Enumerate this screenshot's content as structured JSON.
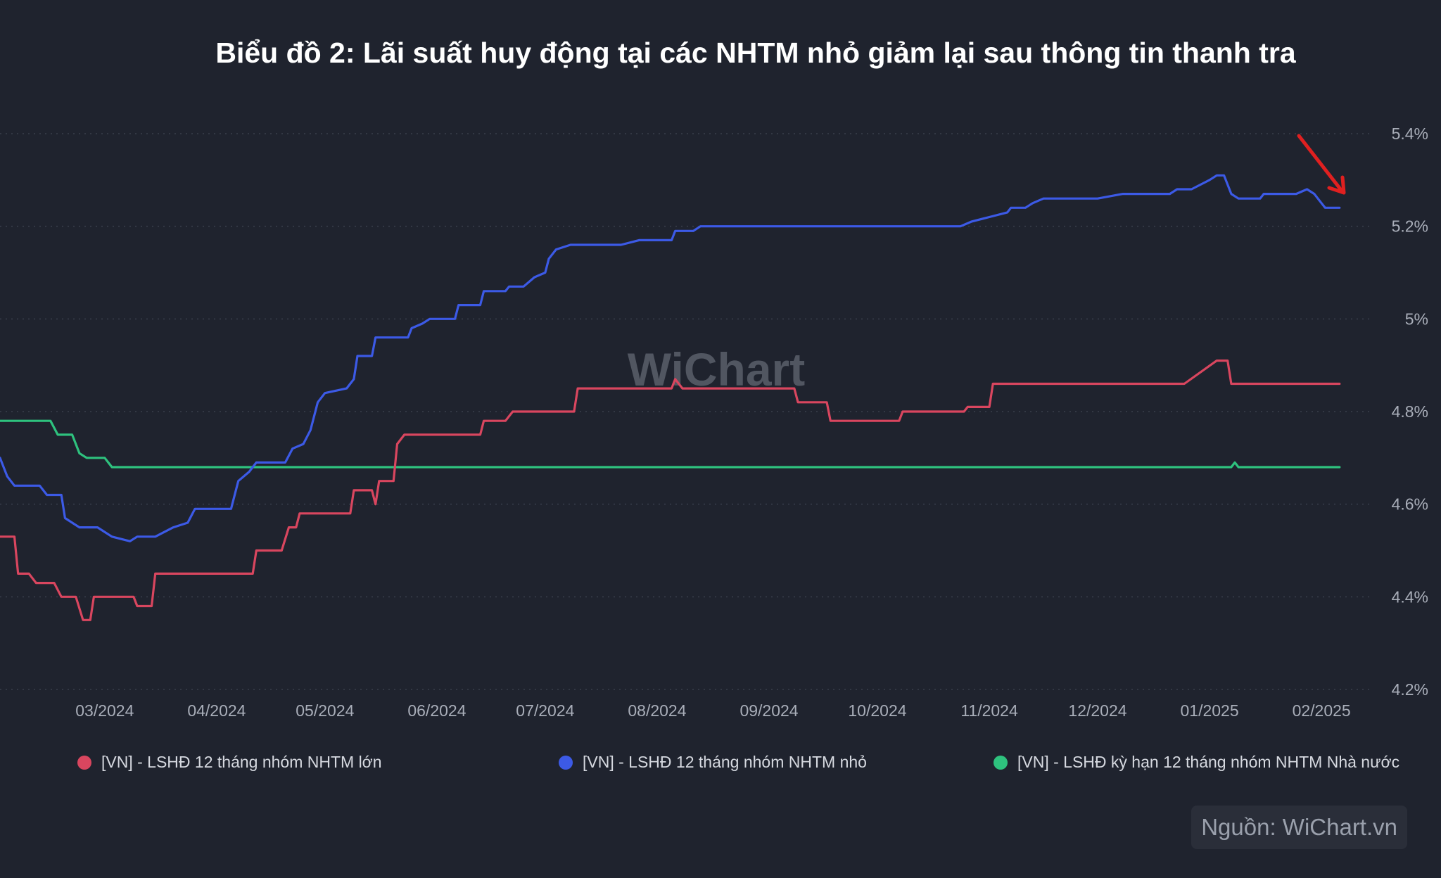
{
  "chart_data": {
    "type": "line",
    "title": "Biểu đồ 2: Lãi suất huy động tại các NHTM nhỏ giảm lại sau thông tin thanh tra",
    "xlabel": "",
    "ylabel": "",
    "x_ticks": [
      "03/2024",
      "04/2024",
      "05/2024",
      "06/2024",
      "07/2024",
      "08/2024",
      "09/2024",
      "10/2024",
      "11/2024",
      "12/2024",
      "01/2025",
      "02/2025"
    ],
    "x_ticks_dates": [
      "2024-03-01",
      "2024-04-01",
      "2024-05-01",
      "2024-06-01",
      "2024-07-01",
      "2024-08-01",
      "2024-09-01",
      "2024-10-01",
      "2024-11-01",
      "2024-12-01",
      "2025-01-01",
      "2025-02-01"
    ],
    "y_ticks": [
      4.2,
      4.4,
      4.6,
      4.8,
      5.0,
      5.2,
      5.4
    ],
    "y_tick_labels": [
      "4.2%",
      "4.4%",
      "4.6%",
      "4.8%",
      "5%",
      "5.2%",
      "5.4%"
    ],
    "ylim": [
      4.2,
      5.4
    ],
    "xlim": [
      "2024-02-01",
      "2025-02-15"
    ],
    "grid": true,
    "legend_position": "bottom",
    "watermark": "WiChart",
    "series": [
      {
        "name": "[VN] - LSHĐ 12 tháng nhóm NHTM lớn",
        "color": "#d9465f",
        "points": [
          [
            "2024-02-01",
            4.53
          ],
          [
            "2024-02-05",
            4.53
          ],
          [
            "2024-02-06",
            4.45
          ],
          [
            "2024-02-09",
            4.45
          ],
          [
            "2024-02-11",
            4.43
          ],
          [
            "2024-02-16",
            4.43
          ],
          [
            "2024-02-18",
            4.4
          ],
          [
            "2024-02-22",
            4.4
          ],
          [
            "2024-02-24",
            4.35
          ],
          [
            "2024-02-26",
            4.35
          ],
          [
            "2024-02-27",
            4.4
          ],
          [
            "2024-03-09",
            4.4
          ],
          [
            "2024-03-10",
            4.38
          ],
          [
            "2024-03-14",
            4.38
          ],
          [
            "2024-03-15",
            4.45
          ],
          [
            "2024-04-11",
            4.45
          ],
          [
            "2024-04-12",
            4.5
          ],
          [
            "2024-04-19",
            4.5
          ],
          [
            "2024-04-21",
            4.55
          ],
          [
            "2024-04-23",
            4.55
          ],
          [
            "2024-04-24",
            4.58
          ],
          [
            "2024-05-08",
            4.58
          ],
          [
            "2024-05-09",
            4.63
          ],
          [
            "2024-05-14",
            4.63
          ],
          [
            "2024-05-15",
            4.6
          ],
          [
            "2024-05-16",
            4.65
          ],
          [
            "2024-05-20",
            4.65
          ],
          [
            "2024-05-21",
            4.73
          ],
          [
            "2024-05-23",
            4.75
          ],
          [
            "2024-06-13",
            4.75
          ],
          [
            "2024-06-14",
            4.78
          ],
          [
            "2024-06-20",
            4.78
          ],
          [
            "2024-06-22",
            4.8
          ],
          [
            "2024-07-09",
            4.8
          ],
          [
            "2024-07-10",
            4.85
          ],
          [
            "2024-08-05",
            4.85
          ],
          [
            "2024-08-06",
            4.87
          ],
          [
            "2024-08-08",
            4.85
          ],
          [
            "2024-09-08",
            4.85
          ],
          [
            "2024-09-09",
            4.82
          ],
          [
            "2024-09-17",
            4.82
          ],
          [
            "2024-09-18",
            4.78
          ],
          [
            "2024-10-07",
            4.78
          ],
          [
            "2024-10-08",
            4.8
          ],
          [
            "2024-10-25",
            4.8
          ],
          [
            "2024-10-26",
            4.81
          ],
          [
            "2024-11-01",
            4.81
          ],
          [
            "2024-11-02",
            4.86
          ],
          [
            "2024-12-25",
            4.86
          ],
          [
            "2025-01-03",
            4.91
          ],
          [
            "2025-01-06",
            4.91
          ],
          [
            "2025-01-07",
            4.86
          ],
          [
            "2025-02-06",
            4.86
          ]
        ]
      },
      {
        "name": "[VN] - LSHĐ 12 tháng nhóm NHTM nhỏ",
        "color": "#3c5ae6",
        "points": [
          [
            "2024-02-01",
            4.7
          ],
          [
            "2024-02-03",
            4.66
          ],
          [
            "2024-02-05",
            4.64
          ],
          [
            "2024-02-12",
            4.64
          ],
          [
            "2024-02-14",
            4.62
          ],
          [
            "2024-02-18",
            4.62
          ],
          [
            "2024-02-19",
            4.57
          ],
          [
            "2024-02-21",
            4.56
          ],
          [
            "2024-02-23",
            4.55
          ],
          [
            "2024-02-28",
            4.55
          ],
          [
            "2024-03-03",
            4.53
          ],
          [
            "2024-03-08",
            4.52
          ],
          [
            "2024-03-10",
            4.53
          ],
          [
            "2024-03-15",
            4.53
          ],
          [
            "2024-03-20",
            4.55
          ],
          [
            "2024-03-24",
            4.56
          ],
          [
            "2024-03-26",
            4.59
          ],
          [
            "2024-04-05",
            4.59
          ],
          [
            "2024-04-07",
            4.65
          ],
          [
            "2024-04-10",
            4.67
          ],
          [
            "2024-04-12",
            4.69
          ],
          [
            "2024-04-20",
            4.69
          ],
          [
            "2024-04-22",
            4.72
          ],
          [
            "2024-04-25",
            4.73
          ],
          [
            "2024-04-27",
            4.76
          ],
          [
            "2024-04-29",
            4.82
          ],
          [
            "2024-05-01",
            4.84
          ],
          [
            "2024-05-07",
            4.85
          ],
          [
            "2024-05-09",
            4.87
          ],
          [
            "2024-05-10",
            4.92
          ],
          [
            "2024-05-14",
            4.92
          ],
          [
            "2024-05-15",
            4.96
          ],
          [
            "2024-05-24",
            4.96
          ],
          [
            "2024-05-25",
            4.98
          ],
          [
            "2024-05-28",
            4.99
          ],
          [
            "2024-05-30",
            5.0
          ],
          [
            "2024-06-06",
            5.0
          ],
          [
            "2024-06-07",
            5.03
          ],
          [
            "2024-06-13",
            5.03
          ],
          [
            "2024-06-14",
            5.06
          ],
          [
            "2024-06-20",
            5.06
          ],
          [
            "2024-06-21",
            5.07
          ],
          [
            "2024-06-25",
            5.07
          ],
          [
            "2024-06-28",
            5.09
          ],
          [
            "2024-07-01",
            5.1
          ],
          [
            "2024-07-02",
            5.13
          ],
          [
            "2024-07-04",
            5.15
          ],
          [
            "2024-07-08",
            5.16
          ],
          [
            "2024-07-15",
            5.16
          ],
          [
            "2024-07-22",
            5.16
          ],
          [
            "2024-07-27",
            5.17
          ],
          [
            "2024-08-05",
            5.17
          ],
          [
            "2024-08-06",
            5.19
          ],
          [
            "2024-08-11",
            5.19
          ],
          [
            "2024-08-13",
            5.2
          ],
          [
            "2024-09-01",
            5.2
          ],
          [
            "2024-09-25",
            5.2
          ],
          [
            "2024-09-27",
            5.2
          ],
          [
            "2024-10-24",
            5.2
          ],
          [
            "2024-10-27",
            5.21
          ],
          [
            "2024-11-01",
            5.22
          ],
          [
            "2024-11-06",
            5.23
          ],
          [
            "2024-11-07",
            5.24
          ],
          [
            "2024-11-11",
            5.24
          ],
          [
            "2024-11-13",
            5.25
          ],
          [
            "2024-11-16",
            5.26
          ],
          [
            "2024-12-01",
            5.26
          ],
          [
            "2024-12-08",
            5.27
          ],
          [
            "2024-12-21",
            5.27
          ],
          [
            "2024-12-23",
            5.28
          ],
          [
            "2024-12-27",
            5.28
          ],
          [
            "2025-01-01",
            5.3
          ],
          [
            "2025-01-03",
            5.31
          ],
          [
            "2025-01-05",
            5.31
          ],
          [
            "2025-01-07",
            5.27
          ],
          [
            "2025-01-09",
            5.26
          ],
          [
            "2025-01-15",
            5.26
          ],
          [
            "2025-01-16",
            5.27
          ],
          [
            "2025-01-25",
            5.27
          ],
          [
            "2025-01-28",
            5.28
          ],
          [
            "2025-01-30",
            5.27
          ],
          [
            "2025-02-01",
            5.25
          ],
          [
            "2025-02-02",
            5.24
          ],
          [
            "2025-02-06",
            5.24
          ]
        ]
      },
      {
        "name": "[VN] - LSHĐ kỳ hạn 12 tháng nhóm NHTM Nhà nước",
        "color": "#2ec27e",
        "points": [
          [
            "2024-02-01",
            4.78
          ],
          [
            "2024-02-15",
            4.78
          ],
          [
            "2024-02-17",
            4.75
          ],
          [
            "2024-02-21",
            4.75
          ],
          [
            "2024-02-23",
            4.71
          ],
          [
            "2024-02-25",
            4.7
          ],
          [
            "2024-03-01",
            4.7
          ],
          [
            "2024-03-03",
            4.68
          ],
          [
            "2025-01-07",
            4.68
          ],
          [
            "2025-01-08",
            4.69
          ],
          [
            "2025-01-09",
            4.68
          ],
          [
            "2025-02-06",
            4.68
          ]
        ]
      }
    ]
  },
  "legend": {
    "items": [
      {
        "label": "[VN] - LSHĐ 12 tháng nhóm NHTM lớn",
        "color": "#d9465f"
      },
      {
        "label": "[VN] - LSHĐ 12 tháng nhóm NHTM nhỏ",
        "color": "#3c5ae6"
      },
      {
        "label": "[VN] - LSHĐ kỳ hạn 12 tháng nhóm NHTM Nhà nước",
        "color": "#2ec27e"
      }
    ]
  },
  "source": {
    "label": "Nguồn: WiChart.vn"
  },
  "colors": {
    "background": "#1f232e",
    "grid": "#3a3f4c",
    "annotation_arrow": "#e02020"
  }
}
